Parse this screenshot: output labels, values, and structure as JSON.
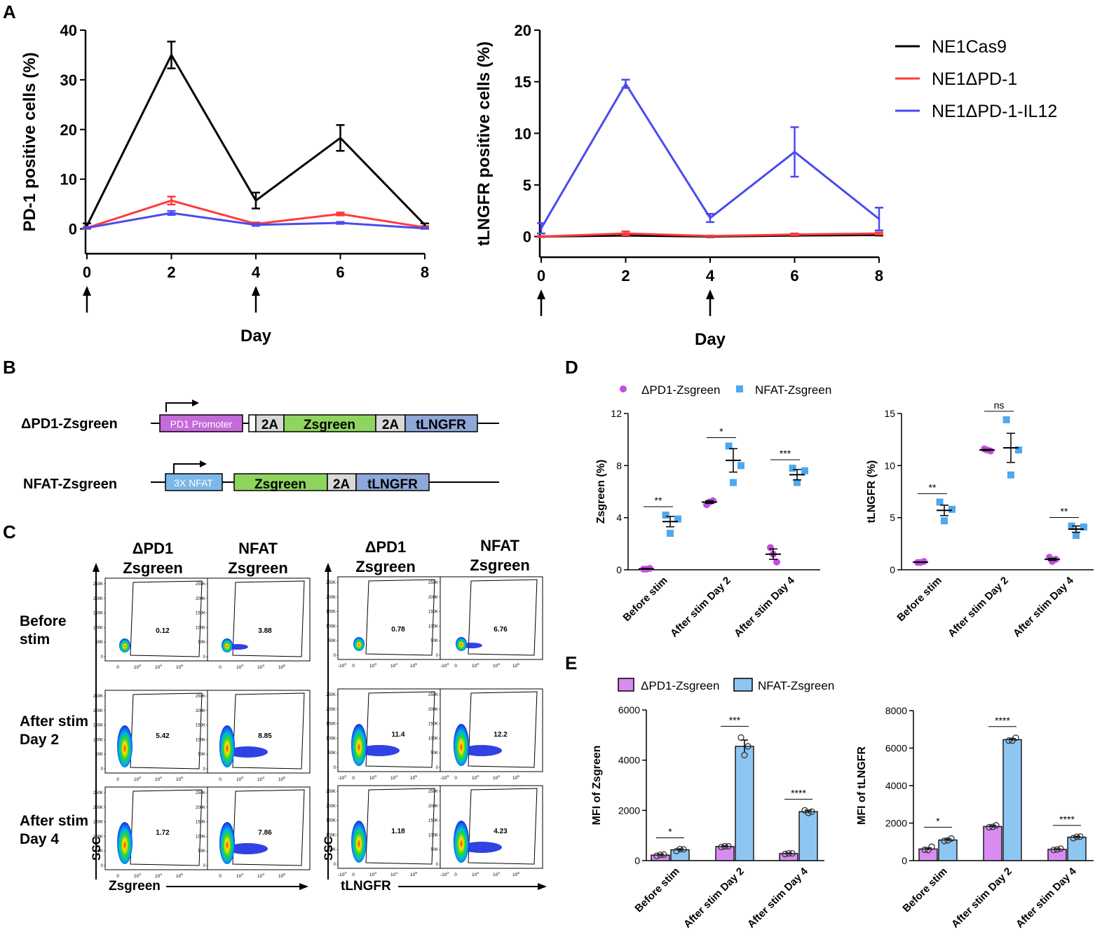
{
  "panels": {
    "A": "A",
    "B": "B",
    "C": "C",
    "D": "D",
    "E": "E"
  },
  "colors": {
    "black": "#000000",
    "red": "#ff3b3b",
    "blue": "#4a4af2",
    "violet": "#c34fe0",
    "skyblue": "#4ea8ee",
    "bar_violet": "#d88cf0",
    "bar_blue": "#8ec6f2"
  },
  "chart_data": [
    {
      "id": "A1",
      "type": "line",
      "xlabel": "Day",
      "ylabel": "PD-1 positive cells  (%)",
      "x": [
        0,
        2,
        4,
        6,
        8
      ],
      "xlim": [
        0,
        8
      ],
      "ylim": [
        -5,
        40
      ],
      "yticks": [
        "0",
        "10",
        "20",
        "30",
        "40"
      ],
      "xticks": [
        "0",
        "2",
        "4",
        "6",
        "8"
      ],
      "arrows_at_day": [
        0,
        4
      ],
      "series": [
        {
          "name": "NE1Cas9",
          "color": "#000000",
          "values": [
            0.6,
            35,
            5.7,
            18.3,
            0.8
          ],
          "err": [
            0.5,
            2.7,
            1.6,
            2.6,
            0.3
          ]
        },
        {
          "name": "NE1ΔPD-1",
          "color": "#ff3b3b",
          "values": [
            0.2,
            5.7,
            1.0,
            3.0,
            0.3
          ],
          "err": [
            0.2,
            0.8,
            0.3,
            0.3,
            0.1
          ]
        },
        {
          "name": "NE1ΔPD-1-IL12",
          "color": "#4a4af2",
          "values": [
            0.2,
            3.2,
            0.8,
            1.2,
            0.1
          ],
          "err": [
            0.1,
            0.4,
            0.2,
            0.2,
            0.1
          ]
        }
      ]
    },
    {
      "id": "A2",
      "type": "line",
      "xlabel": "Day",
      "ylabel": "tLNGFR positive cells  (%)",
      "x": [
        0,
        2,
        4,
        6,
        8
      ],
      "xlim": [
        0,
        8
      ],
      "ylim": [
        -2,
        20
      ],
      "yticks": [
        "0",
        "5",
        "10",
        "15",
        "20"
      ],
      "xticks": [
        "0",
        "2",
        "4",
        "6",
        "8"
      ],
      "arrows_at_day": [
        0,
        4
      ],
      "series": [
        {
          "name": "NE1Cas9",
          "color": "#000000",
          "values": [
            0.0,
            0.1,
            0.0,
            0.1,
            0.15
          ],
          "err": [
            0.05,
            0.05,
            0.05,
            0.05,
            0.05
          ]
        },
        {
          "name": "NE1ΔPD-1",
          "color": "#ff3b3b",
          "values": [
            0.0,
            0.3,
            0.05,
            0.2,
            0.3
          ],
          "err": [
            0.05,
            0.2,
            0.05,
            0.1,
            0.1
          ]
        },
        {
          "name": "NE1ΔPD-1-IL12",
          "color": "#4a4af2",
          "values": [
            0.8,
            14.8,
            1.8,
            8.2,
            1.7
          ],
          "err": [
            0.5,
            0.4,
            0.4,
            2.4,
            1.1
          ]
        }
      ]
    },
    {
      "id": "D1",
      "type": "scatter",
      "ylabel": "Zsgreen (%)",
      "ylim": [
        0,
        12
      ],
      "yticks": [
        "0",
        "4",
        "8",
        "12"
      ],
      "categories": [
        "Before stim",
        "After stim Day 2",
        "After stim Day 4"
      ],
      "series": [
        {
          "name": "ΔPD1-Zsgreen",
          "color": "#c34fe0",
          "marker": "circle",
          "points": [
            [
              0.05,
              0.1,
              0.05
            ],
            [
              5.0,
              5.3,
              5.2
            ],
            [
              1.7,
              0.6,
              1.2
            ]
          ],
          "mean": [
            0.07,
            5.2,
            1.2
          ],
          "sem": [
            0.03,
            0.1,
            0.4
          ]
        },
        {
          "name": "NFAT-Zsgreen",
          "color": "#4ea8ee",
          "marker": "square",
          "points": [
            [
              4.2,
              3.9,
              2.8
            ],
            [
              9.5,
              8.0,
              6.7
            ],
            [
              7.8,
              7.6,
              6.7
            ]
          ],
          "mean": [
            3.7,
            8.4,
            7.3
          ],
          "sem": [
            0.4,
            0.9,
            0.4
          ]
        }
      ],
      "significance": [
        "**",
        "*",
        "***"
      ]
    },
    {
      "id": "D2",
      "type": "scatter",
      "ylabel": "tLNGFR (%)",
      "ylim": [
        0,
        15
      ],
      "yticks": [
        "0",
        "5",
        "10",
        "15"
      ],
      "categories": [
        "Before stim",
        "After stim Day 2",
        "After stim Day 4"
      ],
      "series": [
        {
          "name": "ΔPD1-Zsgreen",
          "color": "#c34fe0",
          "marker": "circle",
          "points": [
            [
              0.7,
              0.8,
              0.7
            ],
            [
              11.6,
              11.4,
              11.5
            ],
            [
              1.2,
              1.0,
              0.8
            ]
          ],
          "mean": [
            0.73,
            11.5,
            1.0
          ],
          "sem": [
            0.03,
            0.06,
            0.1
          ]
        },
        {
          "name": "NFAT-Zsgreen",
          "color": "#4ea8ee",
          "marker": "square",
          "points": [
            [
              6.5,
              5.8,
              4.7
            ],
            [
              14.4,
              11.5,
              9.1
            ],
            [
              4.2,
              4.1,
              3.3
            ]
          ],
          "mean": [
            5.7,
            11.7,
            3.9
          ],
          "sem": [
            0.5,
            1.4,
            0.3
          ]
        }
      ],
      "significance": [
        "**",
        "ns",
        "**"
      ]
    },
    {
      "id": "E1",
      "type": "bar",
      "ylabel": "MFI of Zsgreen",
      "ylim": [
        0,
        6000
      ],
      "yticks": [
        "0",
        "2000",
        "4000",
        "6000"
      ],
      "categories": [
        "Before stim",
        "After stim Day 2",
        "After stim Day 4"
      ],
      "series": [
        {
          "name": "ΔPD1-Zsgreen",
          "color": "#d88cf0",
          "values": [
            220,
            560,
            280
          ],
          "sem": [
            30,
            30,
            20
          ],
          "points": [
            [
              190,
              240,
              230
            ],
            [
              540,
              570,
              570
            ],
            [
              260,
              290,
              290
            ]
          ]
        },
        {
          "name": "NFAT-Zsgreen",
          "color": "#8ec6f2",
          "values": [
            430,
            4550,
            1950
          ],
          "sem": [
            40,
            250,
            60
          ],
          "points": [
            [
              380,
              450,
              460
            ],
            [
              4900,
              4550,
              4200
            ],
            [
              2000,
              1950,
              1900
            ]
          ]
        }
      ],
      "significance": [
        "*",
        "***",
        "****"
      ]
    },
    {
      "id": "E2",
      "type": "bar",
      "ylabel": "MFI of tLNGFR",
      "ylim": [
        0,
        8000
      ],
      "yticks": [
        "0",
        "2000",
        "4000",
        "6000",
        "8000"
      ],
      "categories": [
        "Before stim",
        "After stim Day 2",
        "After stim Day 4"
      ],
      "series": [
        {
          "name": "ΔPD1-Zsgreen",
          "color": "#d88cf0",
          "values": [
            620,
            1820,
            600
          ],
          "sem": [
            60,
            50,
            30
          ],
          "points": [
            [
              580,
              740,
              560
            ],
            [
              1780,
              1880,
              1800
            ],
            [
              570,
              640,
              590
            ]
          ]
        },
        {
          "name": "NFAT-Zsgreen",
          "color": "#8ec6f2",
          "values": [
            1100,
            6450,
            1250
          ],
          "sem": [
            60,
            60,
            50
          ],
          "points": [
            [
              1050,
              1180,
              1080
            ],
            [
              6400,
              6550,
              6400
            ],
            [
              1200,
              1280,
              1270
            ]
          ]
        }
      ],
      "significance": [
        "*",
        "****",
        "****"
      ]
    }
  ],
  "legend_A": [
    "NE1Cas9",
    "NE1ΔPD-1",
    "NE1ΔPD-1-IL12"
  ],
  "legend_D": [
    "ΔPD1-Zsgreen",
    "NFAT-Zsgreen"
  ],
  "legend_E": [
    "ΔPD1-Zsgreen",
    "NFAT-Zsgreen"
  ],
  "constructs": {
    "row1": {
      "label": "ΔPD1-Zsgreen",
      "segments": [
        "PD1 Promoter",
        "2A",
        "Zsgreen",
        "2A",
        "tLNGFR"
      ]
    },
    "row2": {
      "label": "NFAT-Zsgreen",
      "segments": [
        "3X NFAT",
        "Zsgreen",
        "2A",
        "tLNGFR"
      ]
    }
  },
  "flow": {
    "left_headers": [
      "ΔPD1\nZsgreen",
      "NFAT\nZsgreen"
    ],
    "right_headers": [
      "ΔPD1\nZsgreen",
      "NFAT\nZsgreen"
    ],
    "row_labels": [
      "Before\nstim",
      "After stim\nDay 2",
      "After stim\nDay 4"
    ],
    "y_axis_label": "SSC",
    "left_x_label": "Zsgreen",
    "right_x_label": "tLNGFR",
    "left_values": [
      [
        "0.12",
        "3.88"
      ],
      [
        "5.42",
        "8.85"
      ],
      [
        "1.72",
        "7.86"
      ]
    ],
    "right_values": [
      [
        "0.78",
        "6.76"
      ],
      [
        "11.4",
        "12.2"
      ],
      [
        "1.18",
        "4.23"
      ]
    ],
    "y_ticks": [
      "250K",
      "200K",
      "150K",
      "100K",
      "50K",
      "0"
    ],
    "left_x_ticks": [
      "0",
      "10^3",
      "10^4",
      "10^5"
    ],
    "right_x_ticks": [
      "-10^3",
      "0",
      "10^3",
      "10^4",
      "10^5"
    ]
  }
}
